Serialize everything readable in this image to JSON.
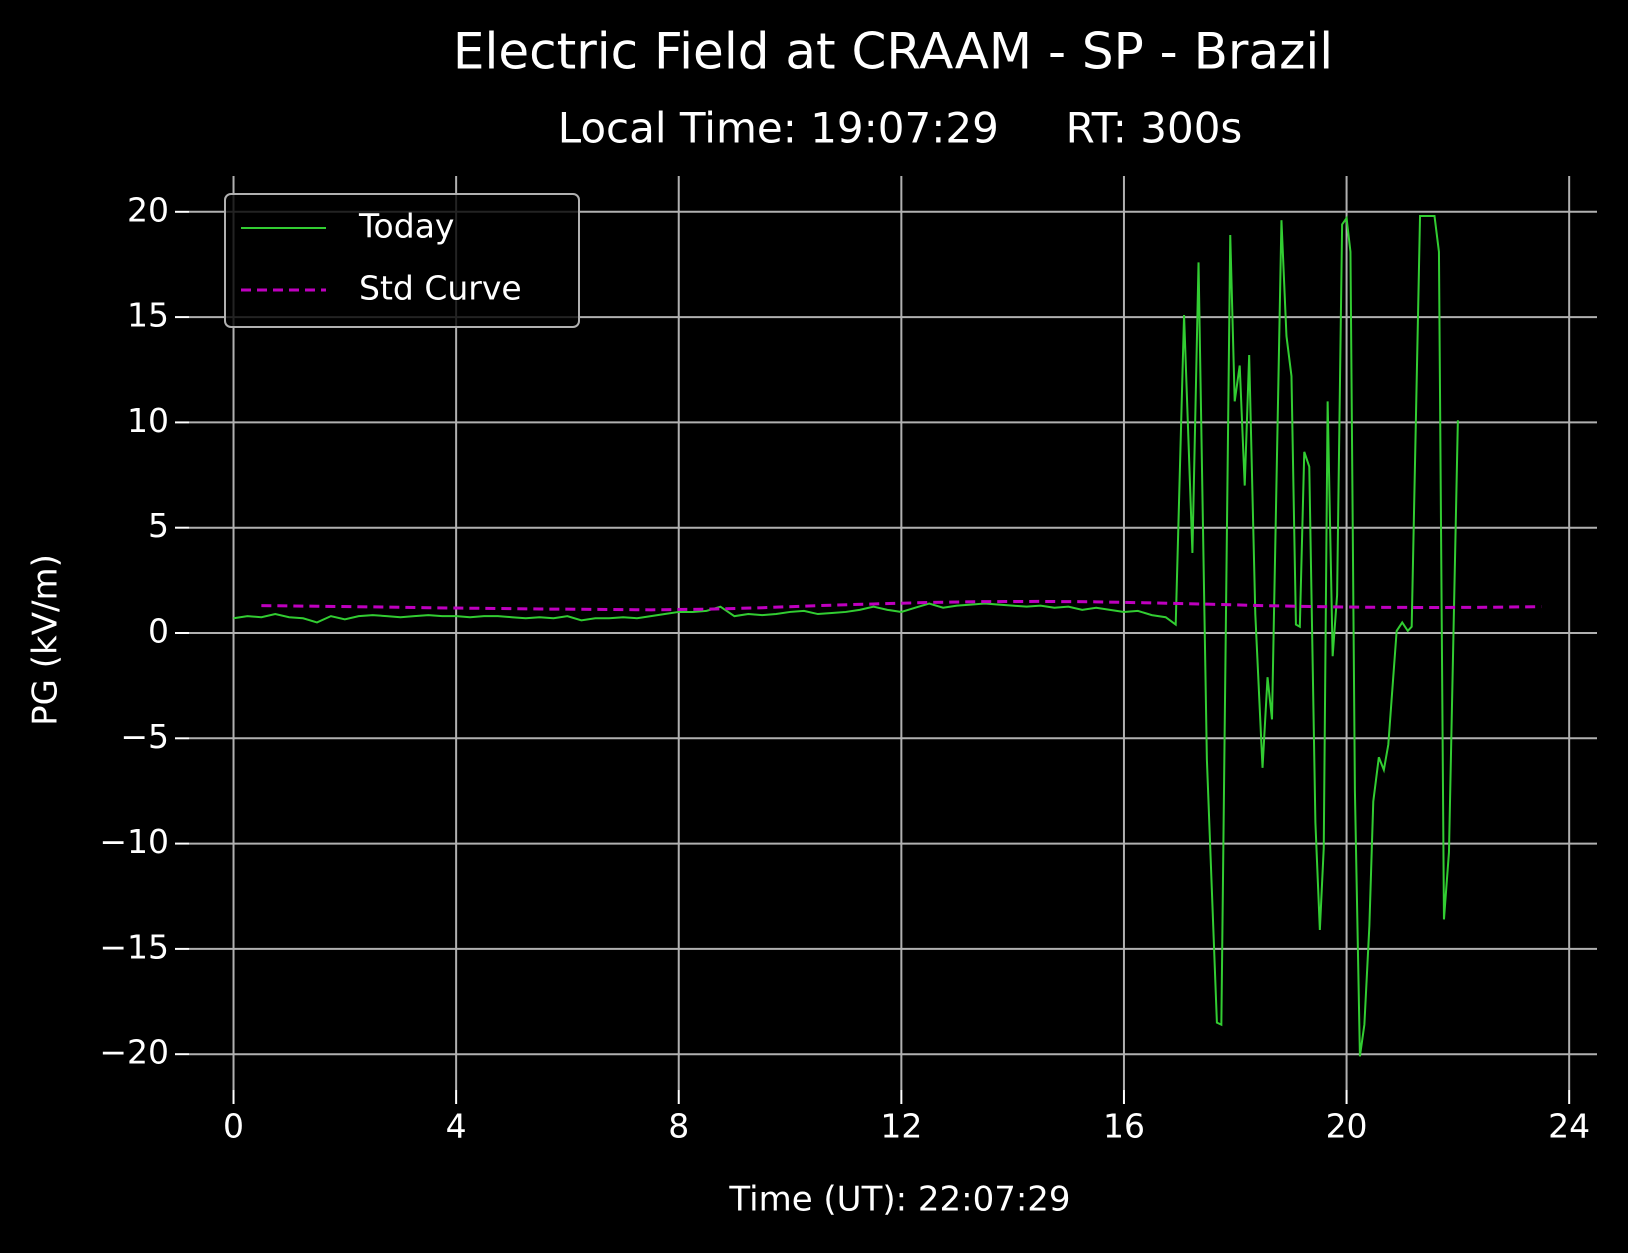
{
  "chart_data": {
    "type": "line",
    "title": "Electric Field at CRAAM - SP - Brazil",
    "subtitle": "Local Time: 19:07:29     RT: 300s",
    "x_label": "Time (UT): 22:07:29",
    "y_label": "PG (kV/m)",
    "xlim": [
      -0.8,
      24.5
    ],
    "ylim": [
      -21.7,
      21.7
    ],
    "xticks": [
      0,
      4,
      8,
      12,
      16,
      20,
      24
    ],
    "yticks": [
      {
        "value": -20,
        "label": "−20"
      },
      {
        "value": -15,
        "label": "−15"
      },
      {
        "value": -10,
        "label": "−10"
      },
      {
        "value": -5,
        "label": "−5"
      },
      0,
      5,
      10,
      15,
      20
    ],
    "grid": true,
    "background": "#000000",
    "legend": "upper left",
    "series": [
      {
        "name": "Today",
        "color": "#32cd32",
        "dash": "solid",
        "x": [
          0,
          0.25,
          0.5,
          0.75,
          1,
          1.25,
          1.5,
          1.75,
          2,
          2.25,
          2.5,
          2.75,
          3,
          3.25,
          3.5,
          3.75,
          4,
          4.25,
          4.5,
          4.75,
          5,
          5.25,
          5.5,
          5.75,
          6,
          6.25,
          6.5,
          6.75,
          7,
          7.25,
          7.5,
          7.75,
          8,
          8.25,
          8.5,
          8.75,
          9,
          9.25,
          9.5,
          9.75,
          10,
          10.25,
          10.5,
          10.75,
          11,
          11.25,
          11.5,
          11.75,
          12,
          12.25,
          12.5,
          12.75,
          13,
          13.25,
          13.5,
          13.75,
          14,
          14.25,
          14.5,
          14.75,
          15,
          15.25,
          15.5,
          15.75,
          16,
          16.25,
          16.5,
          16.75,
          16.93,
          17.08,
          17.23,
          17.34,
          17.49,
          17.67,
          17.75,
          17.91,
          17.99,
          18.08,
          18.17,
          18.25,
          18.36,
          18.49,
          18.58,
          18.66,
          18.83,
          18.92,
          19.01,
          19.09,
          19.16,
          19.24,
          19.33,
          19.44,
          19.52,
          19.59,
          19.66,
          19.75,
          19.83,
          19.92,
          20.0,
          20.07,
          20.15,
          20.24,
          20.32,
          20.41,
          20.48,
          20.58,
          20.67,
          20.75,
          20.9,
          21.0,
          21.1,
          21.17,
          21.32,
          21.58,
          21.66,
          21.75,
          21.84,
          22.0
        ],
        "values": [
          0.7,
          0.8,
          0.75,
          0.9,
          0.75,
          0.7,
          0.5,
          0.8,
          0.65,
          0.8,
          0.85,
          0.8,
          0.75,
          0.8,
          0.85,
          0.8,
          0.8,
          0.75,
          0.8,
          0.8,
          0.75,
          0.7,
          0.75,
          0.7,
          0.8,
          0.6,
          0.7,
          0.7,
          0.75,
          0.7,
          0.8,
          0.9,
          1.0,
          1.0,
          1.05,
          1.25,
          0.8,
          0.9,
          0.85,
          0.9,
          1.0,
          1.05,
          0.9,
          0.95,
          1.0,
          1.1,
          1.25,
          1.1,
          1.0,
          1.2,
          1.4,
          1.2,
          1.3,
          1.35,
          1.4,
          1.35,
          1.3,
          1.25,
          1.3,
          1.2,
          1.25,
          1.1,
          1.2,
          1.1,
          1.0,
          1.05,
          0.85,
          0.75,
          0.4,
          15.1,
          3.8,
          17.6,
          -6.0,
          -18.5,
          -18.6,
          18.9,
          11.0,
          12.7,
          7.0,
          13.2,
          0.9,
          -6.4,
          -2.1,
          -4.1,
          19.6,
          14.1,
          12.2,
          0.4,
          0.3,
          8.6,
          7.9,
          -9.0,
          -14.1,
          -10.2,
          11.0,
          -1.1,
          1.8,
          19.4,
          19.7,
          18.1,
          -7.5,
          -20.1,
          -18.6,
          -13.9,
          -8.0,
          -5.9,
          -6.5,
          -5.3,
          0.1,
          0.5,
          0.1,
          0.3,
          19.8,
          19.8,
          18.1,
          -13.6,
          -10.4,
          10.1
        ]
      },
      {
        "name": "Std Curve",
        "color": "#bf00bf",
        "dash": "dashed",
        "x": [
          0.5,
          1.5,
          2.5,
          3.5,
          4.5,
          5.5,
          6.5,
          7.5,
          8.5,
          9.5,
          10.5,
          11.5,
          12.5,
          13.5,
          14.5,
          15.5,
          16.5,
          17.5,
          18.5,
          19.5,
          20.5,
          21.5,
          22.5,
          23.5
        ],
        "values": [
          1.3,
          1.27,
          1.24,
          1.2,
          1.17,
          1.14,
          1.12,
          1.1,
          1.13,
          1.2,
          1.3,
          1.38,
          1.45,
          1.49,
          1.5,
          1.48,
          1.43,
          1.37,
          1.3,
          1.25,
          1.22,
          1.21,
          1.22,
          1.25
        ]
      }
    ]
  }
}
